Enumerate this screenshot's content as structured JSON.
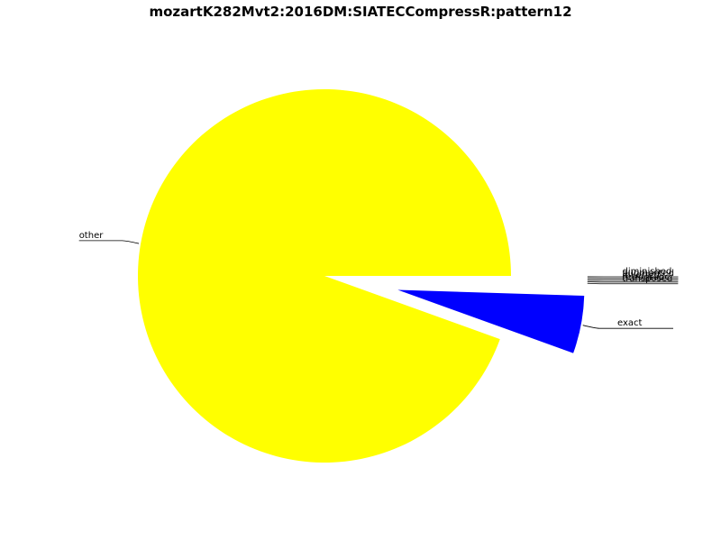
{
  "chart_data": {
    "type": "pie",
    "title": "mozartK282Mvt2:2016DM:SIATECCompressR:pattern12",
    "slices": [
      {
        "label": "other",
        "value": 94.5,
        "color": "#ffff00",
        "explode": 0
      },
      {
        "label": "exact",
        "value": 5.0,
        "color": "#0000ff",
        "explode": 0.4
      },
      {
        "label": "transposed",
        "value": 0.1,
        "color": "#ffffff",
        "explode": 0.4
      },
      {
        "label": "retrograde",
        "value": 0.1,
        "color": "#ffffff",
        "explode": 0.4
      },
      {
        "label": "inverted",
        "value": 0.1,
        "color": "#ffffff",
        "explode": 0.4
      },
      {
        "label": "augmented",
        "value": 0.1,
        "color": "#ffffff",
        "explode": 0.4
      },
      {
        "label": "diminished",
        "value": 0.1,
        "color": "#ffffff",
        "explode": 0.4
      }
    ],
    "startangle": 0,
    "legend": "none",
    "grid": false
  }
}
